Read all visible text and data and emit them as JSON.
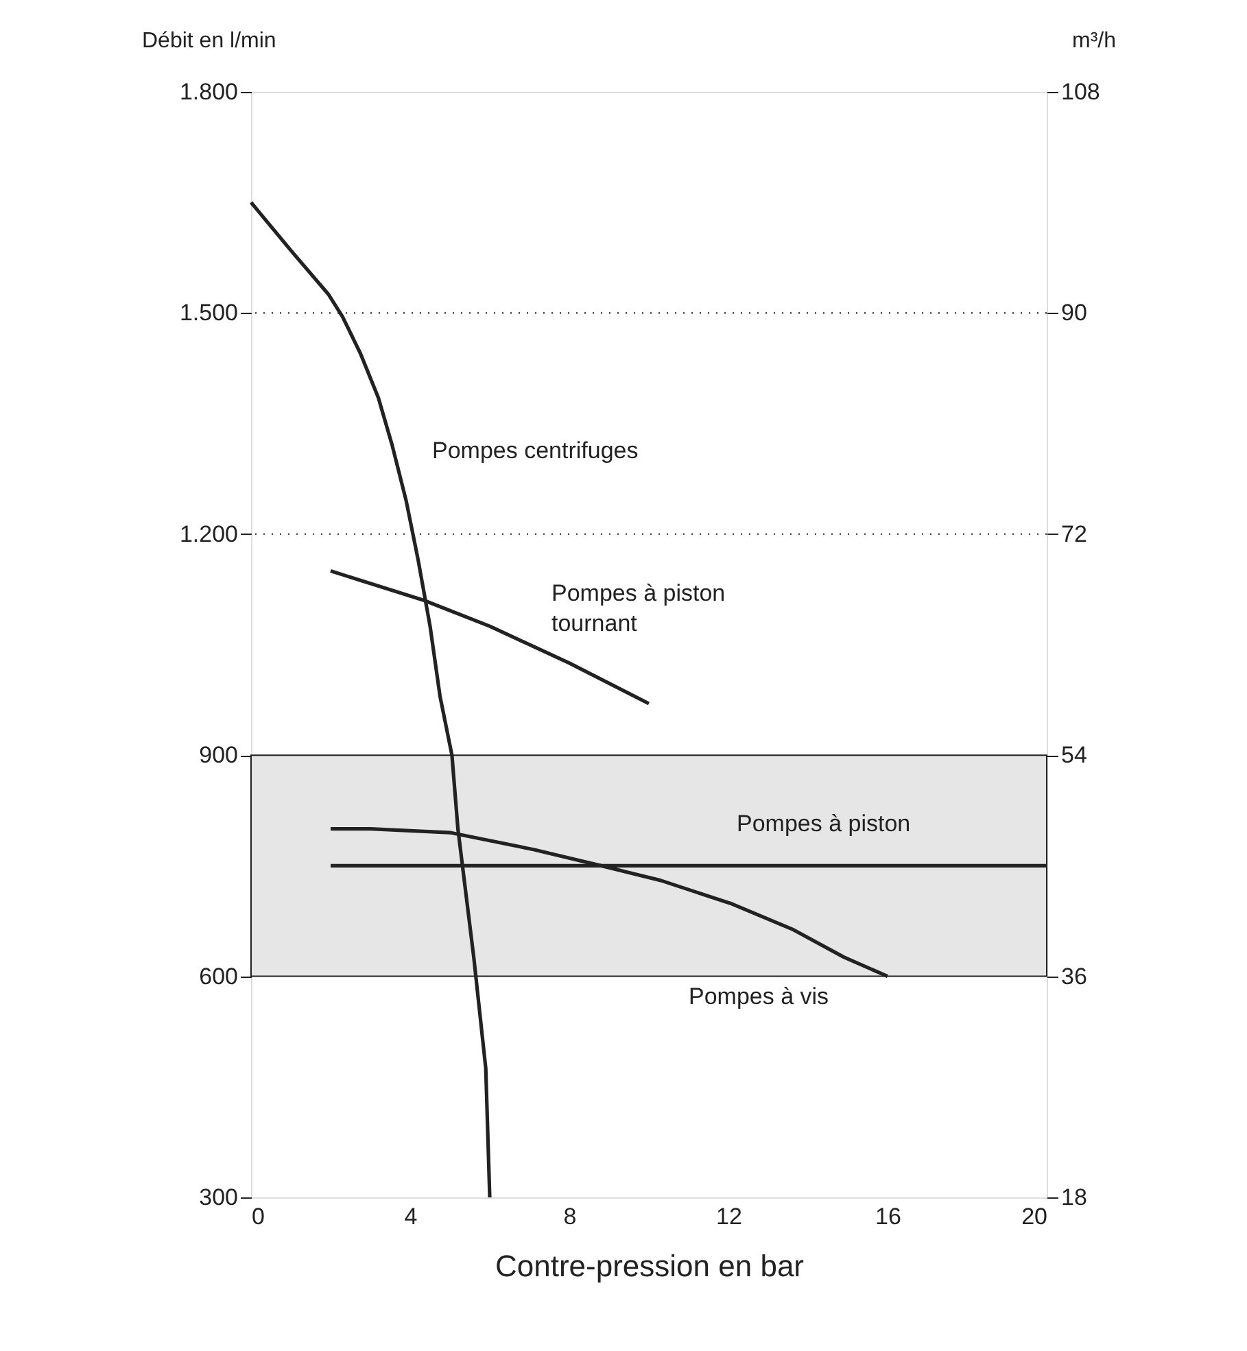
{
  "chart_data": {
    "type": "line",
    "xlabel": "Contre-pression en bar",
    "ylabel": "Débit en l/min",
    "y2label": "m³/h",
    "xlim": [
      0,
      20
    ],
    "xticks": [
      0,
      4,
      8,
      12,
      16,
      20
    ],
    "ylim": [
      300,
      1800
    ],
    "yticks": [
      300,
      600,
      900,
      {
        "value": 1200,
        "label": "1.200"
      },
      {
        "value": 1500,
        "label": "1.500"
      },
      {
        "value": 1800,
        "label": "1.800"
      }
    ],
    "y2lim": [
      18,
      108
    ],
    "y2ticks": [
      18,
      36,
      54,
      72,
      90,
      108
    ],
    "grid": false,
    "legend": false,
    "marker": "none",
    "line_style": "solid",
    "series": [
      {
        "name": "Pompes centrifuges",
        "color": "#222222",
        "x": [
          0,
          1.0,
          1.95,
          2.3,
          2.75,
          3.2,
          3.55,
          3.9,
          4.2,
          4.5,
          4.75,
          5.05,
          5.2,
          5.6,
          5.9,
          6.0
        ],
        "values": [
          1650,
          1585,
          1525,
          1495,
          1445,
          1385,
          1320,
          1245,
          1165,
          1075,
          980,
          900,
          800,
          625,
          475,
          300
        ]
      },
      {
        "name": "Pompes à piston tournant",
        "color": "#222222",
        "x": [
          2,
          4.35,
          6,
          8,
          10
        ],
        "values": [
          1150,
          1110,
          1075,
          1025,
          970
        ]
      },
      {
        "name": "Pompes à piston",
        "color": "#222222",
        "x": [
          2,
          20
        ],
        "values": [
          750,
          750
        ]
      },
      {
        "name": "Pompes à vis",
        "color": "#222222",
        "x": [
          2,
          3,
          5,
          7.1,
          8.8,
          10.3,
          12.1,
          13.6,
          14.9,
          16
        ],
        "values": [
          800,
          800,
          795,
          772,
          750,
          730,
          698,
          664,
          626,
          600
        ]
      }
    ],
    "bands": [
      {
        "axis": "y",
        "from": 600,
        "to": 900
      }
    ],
    "ref_lines": [
      {
        "axis": "y",
        "value": 1200,
        "line_style": "dotted"
      },
      {
        "axis": "y",
        "value": 1500,
        "line_style": "dotted"
      }
    ]
  }
}
